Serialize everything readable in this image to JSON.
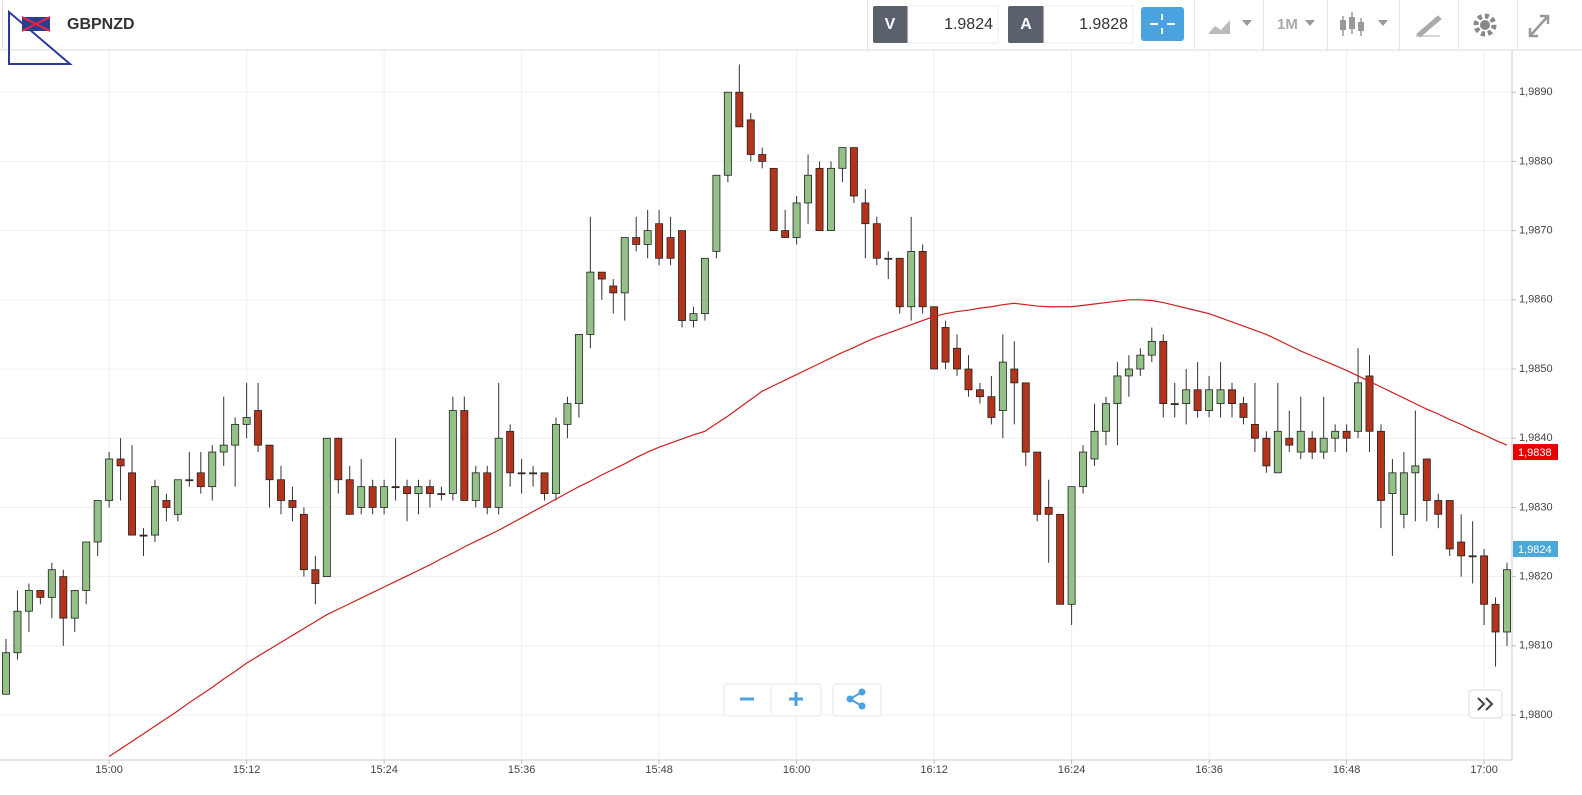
{
  "header": {
    "symbol": "GBPNZD",
    "bid_label": "V",
    "bid": 1.9824,
    "ask_label": "A",
    "ask": 1.9828,
    "timeframe": "1M"
  },
  "chart_data": {
    "type": "candlestick",
    "categories": [
      "14:51",
      "14:52",
      "14:53",
      "14:54",
      "14:55",
      "14:56",
      "14:57",
      "14:58",
      "14:59",
      "15:00",
      "15:01",
      "15:02",
      "15:03",
      "15:04",
      "15:05",
      "15:06",
      "15:07",
      "15:08",
      "15:09",
      "15:10",
      "15:11",
      "15:12",
      "15:13",
      "15:14",
      "15:15",
      "15:16",
      "15:17",
      "15:18",
      "15:19",
      "15:20",
      "15:21",
      "15:22",
      "15:23",
      "15:24",
      "15:25",
      "15:26",
      "15:27",
      "15:28",
      "15:29",
      "15:30",
      "15:31",
      "15:32",
      "15:33",
      "15:34",
      "15:35",
      "15:36",
      "15:37",
      "15:38",
      "15:39",
      "15:40",
      "15:41",
      "15:42",
      "15:43",
      "15:44",
      "15:45",
      "15:46",
      "15:47",
      "15:48",
      "15:49",
      "15:50",
      "15:51",
      "15:52",
      "15:53",
      "15:54",
      "15:55",
      "15:56",
      "15:57",
      "15:58",
      "15:59",
      "16:00",
      "16:01",
      "16:02",
      "16:03",
      "16:04",
      "16:05",
      "16:06",
      "16:07",
      "16:08",
      "16:09",
      "16:10",
      "16:11",
      "16:12",
      "16:13",
      "16:14",
      "16:15",
      "16:16",
      "16:17",
      "16:18",
      "16:19",
      "16:20",
      "16:21",
      "16:22",
      "16:23",
      "16:24",
      "16:25",
      "16:26",
      "16:27",
      "16:28",
      "16:29",
      "16:30",
      "16:31",
      "16:32",
      "16:33",
      "16:34",
      "16:35",
      "16:36",
      "16:37",
      "16:38",
      "16:39",
      "16:40",
      "16:41",
      "16:42",
      "16:43",
      "16:44",
      "16:45",
      "16:46",
      "16:47",
      "16:48",
      "16:49",
      "16:50",
      "16:51",
      "16:52",
      "16:53",
      "16:54",
      "16:55",
      "16:56",
      "16:57",
      "16:58",
      "16:59",
      "17:00",
      "17:01",
      "17:02"
    ],
    "open": [
      1.9803,
      1.9809,
      1.9815,
      1.9818,
      1.9817,
      1.982,
      1.9814,
      1.9818,
      1.9825,
      1.9831,
      1.9837,
      1.9835,
      1.9826,
      1.9826,
      1.9831,
      1.9829,
      1.9834,
      1.9835,
      1.9833,
      1.9838,
      1.9839,
      1.9842,
      1.9844,
      1.9839,
      1.9834,
      1.9831,
      1.9829,
      1.9821,
      1.982,
      1.984,
      1.9834,
      1.983,
      1.9833,
      1.983,
      1.9833,
      1.9833,
      1.9832,
      1.9833,
      1.9832,
      1.9832,
      1.9844,
      1.9831,
      1.9835,
      1.983,
      1.9841,
      1.9835,
      1.9835,
      1.9835,
      1.9832,
      1.9842,
      1.9845,
      1.9855,
      1.9864,
      1.9862,
      1.9861,
      1.9869,
      1.9868,
      1.9871,
      1.9869,
      1.987,
      1.9857,
      1.9858,
      1.9867,
      1.9878,
      1.989,
      1.9886,
      1.9881,
      1.9879,
      1.987,
      1.9869,
      1.9874,
      1.9879,
      1.987,
      1.9879,
      1.9882,
      1.9874,
      1.9871,
      1.9866,
      1.9866,
      1.9859,
      1.9867,
      1.9859,
      1.9856,
      1.9853,
      1.985,
      1.9847,
      1.9846,
      1.9844,
      1.985,
      1.9848,
      1.9838,
      1.983,
      1.9829,
      1.9816,
      1.9833,
      1.9837,
      1.9841,
      1.9845,
      1.9849,
      1.985,
      1.9852,
      1.9854,
      1.9845,
      1.9845,
      1.9847,
      1.9844,
      1.9845,
      1.9847,
      1.9845,
      1.9842,
      1.984,
      1.9835,
      1.984,
      1.9838,
      1.984,
      1.9838,
      1.984,
      1.9841,
      1.9841,
      1.9849,
      1.9841,
      1.9832,
      1.9829,
      1.9835,
      1.9837,
      1.9831,
      1.9831,
      1.9825,
      1.9823,
      1.9823,
      1.9816,
      1.9812
    ],
    "high": [
      1.9811,
      1.9818,
      1.9819,
      1.9818,
      1.9822,
      1.9821,
      1.9818,
      1.9825,
      1.9831,
      1.9838,
      1.984,
      1.9839,
      1.9827,
      1.9834,
      1.9832,
      1.9834,
      1.9838,
      1.9838,
      1.9839,
      1.9846,
      1.9843,
      1.9848,
      1.9848,
      1.9839,
      1.9836,
      1.9833,
      1.983,
      1.9823,
      1.984,
      1.984,
      1.9836,
      1.9837,
      1.9834,
      1.9834,
      1.984,
      1.9834,
      1.9834,
      1.9834,
      1.9833,
      1.9846,
      1.9846,
      1.9836,
      1.9836,
      1.9848,
      1.9842,
      1.9837,
      1.9836,
      1.9835,
      1.9843,
      1.9846,
      1.9855,
      1.9872,
      1.9864,
      1.9863,
      1.9869,
      1.9872,
      1.9873,
      1.9873,
      1.9872,
      1.987,
      1.9859,
      1.9866,
      1.9878,
      1.989,
      1.9894,
      1.9887,
      1.9882,
      1.9879,
      1.9873,
      1.9875,
      1.9881,
      1.988,
      1.988,
      1.9882,
      1.9882,
      1.9876,
      1.9872,
      1.9867,
      1.9866,
      1.9872,
      1.9868,
      1.9859,
      1.9857,
      1.9855,
      1.9852,
      1.9848,
      1.9849,
      1.9855,
      1.9854,
      1.9848,
      1.9838,
      1.9834,
      1.9829,
      1.9833,
      1.9839,
      1.9845,
      1.9846,
      1.9851,
      1.9852,
      1.9853,
      1.9856,
      1.9855,
      1.9848,
      1.985,
      1.9851,
      1.9849,
      1.9851,
      1.9848,
      1.9846,
      1.9848,
      1.9841,
      1.9848,
      1.9844,
      1.9846,
      1.9841,
      1.9846,
      1.9842,
      1.9842,
      1.9853,
      1.9852,
      1.9842,
      1.9837,
      1.9838,
      1.9844,
      1.9837,
      1.9832,
      1.9831,
      1.9829,
      1.9828,
      1.9824,
      1.9817,
      1.9822
    ],
    "low": [
      1.9803,
      1.9808,
      1.9812,
      1.9816,
      1.9814,
      1.981,
      1.9812,
      1.9816,
      1.9823,
      1.983,
      1.9831,
      1.9826,
      1.9823,
      1.9825,
      1.9828,
      1.9828,
      1.9833,
      1.9832,
      1.9831,
      1.9836,
      1.9833,
      1.984,
      1.9838,
      1.983,
      1.9829,
      1.9828,
      1.982,
      1.9816,
      1.982,
      1.9832,
      1.9829,
      1.9829,
      1.9829,
      1.9829,
      1.9831,
      1.9828,
      1.9829,
      1.983,
      1.9831,
      1.9831,
      1.9831,
      1.983,
      1.9829,
      1.9829,
      1.9833,
      1.9832,
      1.9833,
      1.9831,
      1.9831,
      1.984,
      1.9843,
      1.9853,
      1.986,
      1.9858,
      1.9857,
      1.9867,
      1.9866,
      1.9865,
      1.9865,
      1.9856,
      1.9856,
      1.9857,
      1.9866,
      1.9877,
      1.9885,
      1.988,
      1.9879,
      1.987,
      1.9869,
      1.9868,
      1.9871,
      1.987,
      1.987,
      1.9877,
      1.9874,
      1.9866,
      1.9865,
      1.9863,
      1.9858,
      1.9857,
      1.9858,
      1.985,
      1.985,
      1.9849,
      1.9846,
      1.9845,
      1.9842,
      1.984,
      1.9842,
      1.9836,
      1.9828,
      1.9822,
      1.9816,
      1.9813,
      1.9832,
      1.9836,
      1.9839,
      1.9839,
      1.9846,
      1.9849,
      1.9851,
      1.9843,
      1.9843,
      1.9842,
      1.9843,
      1.9843,
      1.9843,
      1.9843,
      1.9842,
      1.9838,
      1.9835,
      1.9835,
      1.9838,
      1.9837,
      1.9837,
      1.9837,
      1.9838,
      1.9838,
      1.984,
      1.9838,
      1.9827,
      1.9823,
      1.9827,
      1.9828,
      1.9828,
      1.9827,
      1.9823,
      1.982,
      1.9819,
      1.9813,
      1.9807,
      1.981
    ],
    "close": [
      1.9809,
      1.9815,
      1.9818,
      1.9817,
      1.9821,
      1.9814,
      1.9818,
      1.9825,
      1.9831,
      1.9837,
      1.9836,
      1.9826,
      1.9826,
      1.9833,
      1.983,
      1.9834,
      1.9834,
      1.9833,
      1.9838,
      1.9839,
      1.9842,
      1.9843,
      1.9839,
      1.9834,
      1.9831,
      1.983,
      1.9821,
      1.9819,
      1.984,
      1.9834,
      1.9829,
      1.9833,
      1.983,
      1.9833,
      1.9833,
      1.9832,
      1.9833,
      1.9832,
      1.9832,
      1.9844,
      1.9831,
      1.9835,
      1.983,
      1.984,
      1.9835,
      1.9835,
      1.9835,
      1.9832,
      1.9842,
      1.9845,
      1.9855,
      1.9864,
      1.9863,
      1.9861,
      1.9869,
      1.9868,
      1.987,
      1.9866,
      1.9866,
      1.9857,
      1.9858,
      1.9866,
      1.9878,
      1.989,
      1.9885,
      1.9881,
      1.988,
      1.987,
      1.9869,
      1.9874,
      1.9878,
      1.987,
      1.9879,
      1.9882,
      1.9875,
      1.9871,
      1.9866,
      1.9866,
      1.9859,
      1.9867,
      1.9859,
      1.985,
      1.9851,
      1.985,
      1.9847,
      1.9846,
      1.9843,
      1.9851,
      1.9848,
      1.9838,
      1.9829,
      1.9829,
      1.9816,
      1.9833,
      1.9838,
      1.9841,
      1.9845,
      1.9849,
      1.985,
      1.9852,
      1.9854,
      1.9845,
      1.9845,
      1.9847,
      1.9844,
      1.9847,
      1.9847,
      1.9845,
      1.9843,
      1.984,
      1.9836,
      1.9841,
      1.9839,
      1.9841,
      1.9838,
      1.984,
      1.9841,
      1.984,
      1.9848,
      1.9841,
      1.9831,
      1.9835,
      1.9835,
      1.9836,
      1.9831,
      1.9829,
      1.9824,
      1.9823,
      1.9823,
      1.9816,
      1.9812,
      1.9821
    ],
    "up_color": "#93c187",
    "down_color": "#b3341b",
    "overlay": {
      "color": "#cc2020",
      "values": [
        null,
        null,
        null,
        null,
        null,
        null,
        null,
        null,
        null,
        1.9794,
        1.97951,
        1.97962,
        1.97973,
        1.97984,
        1.97995,
        1.98006,
        1.98018,
        1.98029,
        1.9804,
        1.98052,
        1.98063,
        1.98075,
        1.98085,
        1.98095,
        1.98105,
        1.98115,
        1.98125,
        1.98135,
        1.98145,
        1.98153,
        1.98161,
        1.98169,
        1.98177,
        1.98185,
        1.98193,
        1.98201,
        1.98209,
        1.98217,
        1.98226,
        1.98234,
        1.98243,
        1.98251,
        1.98259,
        1.98267,
        1.98276,
        1.98285,
        1.98294,
        1.98303,
        1.98312,
        1.98321,
        1.9833,
        1.98338,
        1.98347,
        1.98355,
        1.98363,
        1.98372,
        1.9838,
        1.98387,
        1.98393,
        1.98399,
        1.98405,
        1.9841,
        1.98421,
        1.98432,
        1.98444,
        1.98456,
        1.98468,
        1.98476,
        1.98484,
        1.98492,
        1.985,
        1.98508,
        1.98516,
        1.98524,
        1.98531,
        1.98539,
        1.98546,
        1.98552,
        1.98558,
        1.98564,
        1.9857,
        1.98576,
        1.9858,
        1.98583,
        1.98585,
        1.98588,
        1.9859,
        1.98593,
        1.98595,
        1.98593,
        1.98591,
        1.9859,
        1.9859,
        1.9859,
        1.98592,
        1.98594,
        1.98596,
        1.98598,
        1.986,
        1.986,
        1.98599,
        1.98596,
        1.98592,
        1.98588,
        1.98584,
        1.9858,
        1.98574,
        1.98568,
        1.98562,
        1.98556,
        1.9855,
        1.98542,
        1.98534,
        1.98526,
        1.98519,
        1.98512,
        1.98505,
        1.98498,
        1.9849,
        1.98482,
        1.98474,
        1.98466,
        1.98458,
        1.9845,
        1.98442,
        1.98435,
        1.98427,
        1.9842,
        1.98412,
        1.98405,
        1.98397,
        1.9839
      ]
    },
    "price_markers": [
      {
        "value": 1.9838,
        "label": "1,9838",
        "color": "#e60000"
      },
      {
        "value": 1.9824,
        "label": "1,9824",
        "color": "#4aa8d8"
      }
    ],
    "ylim": [
      1.97935,
      1.98961
    ],
    "yticks": [
      {
        "value": 1.98,
        "label": "1,9800"
      },
      {
        "value": 1.981,
        "label": "1,9810"
      },
      {
        "value": 1.982,
        "label": "1,9820"
      },
      {
        "value": 1.983,
        "label": "1,9830"
      },
      {
        "value": 1.984,
        "label": "1,9840"
      },
      {
        "value": 1.985,
        "label": "1,9850"
      },
      {
        "value": 1.986,
        "label": "1,9860"
      },
      {
        "value": 1.987,
        "label": "1,9870"
      },
      {
        "value": 1.988,
        "label": "1,9880"
      },
      {
        "value": 1.989,
        "label": "1,9890"
      }
    ],
    "xticks": [
      "15:00",
      "15:12",
      "15:24",
      "15:36",
      "15:48",
      "16:00",
      "16:12",
      "16:24",
      "16:36",
      "16:48",
      "17:00"
    ],
    "grid": true
  }
}
